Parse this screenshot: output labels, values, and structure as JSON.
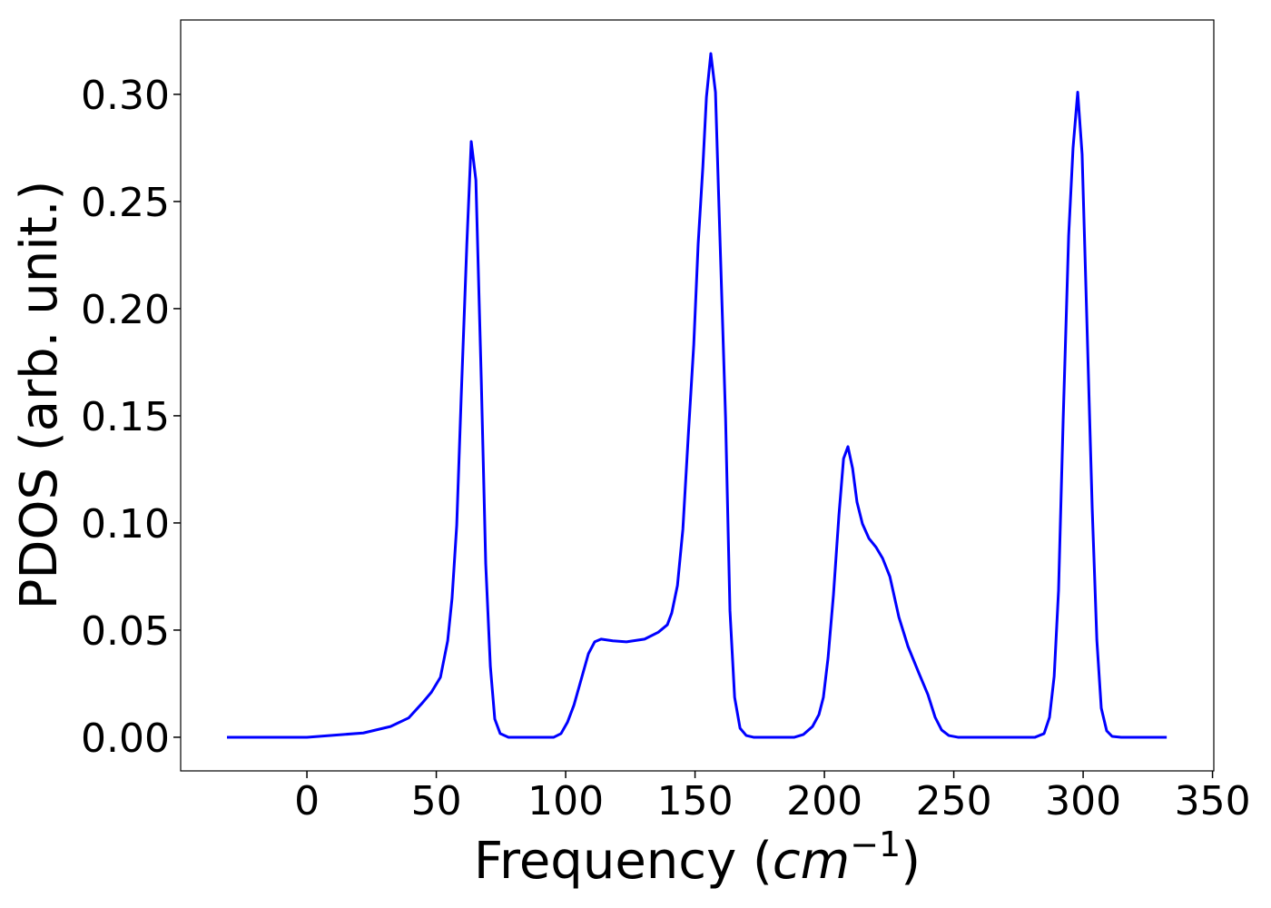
{
  "chart_data": {
    "type": "line",
    "ylabel": "PDOS (arb. unit.)",
    "xlabel_parts": [
      "Frequency (",
      "cm",
      "−1",
      ")"
    ],
    "x": [
      -30.9,
      0,
      21.8,
      32.3,
      39.3,
      44.6,
      48.1,
      51.6,
      54.4,
      56.1,
      57.9,
      59.6,
      61.8,
      63.5,
      65.3,
      67.4,
      69.1,
      70.9,
      72.6,
      74.7,
      77.9,
      95.4,
      98.2,
      100.7,
      103.2,
      106,
      108.8,
      111.2,
      113.7,
      118.2,
      123.5,
      130.5,
      135.8,
      139.3,
      141,
      143.2,
      145.3,
      147.4,
      149.5,
      151.2,
      153,
      154.4,
      156.1,
      157.9,
      159.6,
      161.8,
      163.5,
      165.3,
      167.4,
      169.8,
      172.6,
      188.4,
      191.9,
      195.4,
      197.9,
      199.6,
      201.4,
      203.5,
      205.6,
      207.4,
      209.1,
      210.9,
      212.6,
      214.7,
      217.2,
      220,
      222.5,
      225.3,
      228.8,
      232.3,
      236.5,
      240,
      242.8,
      245.3,
      248.1,
      251.6,
      281.4,
      284.9,
      287,
      288.8,
      290.5,
      292.3,
      294.4,
      296.1,
      297.9,
      299.6,
      301.4,
      303.5,
      305.3,
      307,
      309.1,
      311.2,
      314.7,
      332.3
    ],
    "values": [
      0,
      0,
      0.002,
      0.005,
      0.009,
      0.016,
      0.021,
      0.028,
      0.045,
      0.065,
      0.099,
      0.158,
      0.23,
      0.278,
      0.26,
      0.166,
      0.081,
      0.033,
      0.0085,
      0.0017,
      0,
      0,
      0.0017,
      0.007,
      0.015,
      0.027,
      0.039,
      0.0445,
      0.0458,
      0.045,
      0.0445,
      0.0458,
      0.049,
      0.0525,
      0.058,
      0.0708,
      0.097,
      0.141,
      0.183,
      0.23,
      0.2657,
      0.2987,
      0.319,
      0.301,
      0.234,
      0.149,
      0.059,
      0.0186,
      0.0042,
      0.0008,
      0,
      0,
      0.0013,
      0.005,
      0.0106,
      0.0186,
      0.0369,
      0.0665,
      0.1034,
      0.13,
      0.1356,
      0.1254,
      0.1097,
      0.0996,
      0.0928,
      0.0886,
      0.0835,
      0.075,
      0.056,
      0.0424,
      0.03,
      0.0199,
      0.0093,
      0.0034,
      0.0008,
      0,
      0,
      0.0017,
      0.0093,
      0.0284,
      0.0686,
      0.149,
      0.234,
      0.275,
      0.301,
      0.272,
      0.196,
      0.107,
      0.0453,
      0.0136,
      0.003,
      0.0004,
      0,
      0
    ],
    "color": "#0000ff",
    "xlim": [
      -48.8,
      350.5
    ],
    "ylim": [
      -0.0157,
      0.3347
    ],
    "xticks": [
      0,
      50,
      100,
      150,
      200,
      250,
      300,
      350
    ],
    "yticks": [
      {
        "value": 0,
        "label": "0.00"
      },
      0.05,
      {
        "value": 0.1,
        "label": "0.10"
      },
      0.15,
      {
        "value": 0.2,
        "label": "0.20"
      },
      0.25,
      {
        "value": 0.3,
        "label": "0.30"
      }
    ],
    "grid": false
  }
}
